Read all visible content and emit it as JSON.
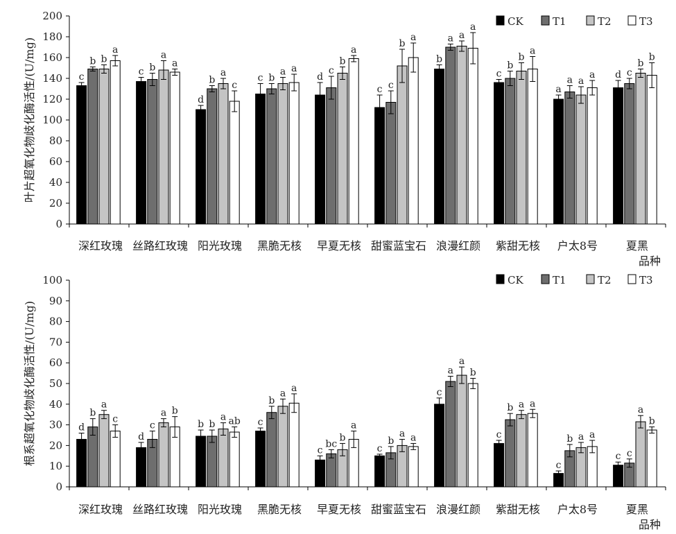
{
  "colors": {
    "CK": "#000000",
    "T1": "#6e6e6e",
    "T2": "#c4c4c4",
    "T3": "#ffffff",
    "edge": "#000000"
  },
  "chart_data": [
    {
      "type": "bar",
      "ylabel": "叶片超氧化物歧化酶活性/(U/mg)",
      "xlabel": "品种",
      "ylim": [
        0,
        200
      ],
      "yticks": [
        "0",
        "20",
        "40",
        "60",
        "80",
        "100",
        "120",
        "140",
        "160",
        "180",
        "200"
      ],
      "categories": [
        "深红玫瑰",
        "丝路红玫瑰",
        "阳光玫瑰",
        "黑脆无核",
        "早夏无核",
        "甜蜜蓝宝石",
        "浪漫红颜",
        "紫甜无核",
        "户太8号",
        "夏黑"
      ],
      "legend_position": "top-right",
      "series": [
        {
          "name": "CK",
          "values": [
            133,
            137,
            110,
            125,
            124,
            112,
            149,
            136,
            120,
            131
          ],
          "errors": [
            3,
            4,
            4,
            10,
            12,
            12,
            4,
            3,
            4,
            7
          ],
          "letters": [
            "c",
            "c",
            "d",
            "c",
            "d",
            "c",
            "b",
            "c",
            "a",
            "d"
          ]
        },
        {
          "name": "T1",
          "values": [
            149,
            139,
            130,
            130,
            131,
            117,
            170,
            140,
            127,
            135
          ],
          "errors": [
            2,
            6,
            3,
            5,
            11,
            11,
            3,
            7,
            6,
            5
          ],
          "letters": [
            "b",
            "b",
            "b",
            "b",
            "c",
            "c",
            "a",
            "b",
            "a",
            "c"
          ]
        },
        {
          "name": "T2",
          "values": [
            149,
            148,
            135,
            135,
            145,
            152,
            171,
            147,
            124,
            145
          ],
          "errors": [
            4,
            9,
            5,
            6,
            6,
            16,
            5,
            8,
            8,
            4
          ],
          "letters": [
            "b",
            "a",
            "a",
            "a",
            "b",
            "b",
            "a",
            "b",
            "a",
            "b"
          ]
        },
        {
          "name": "T3",
          "values": [
            157,
            146,
            118,
            136,
            159,
            160,
            169,
            149,
            131,
            143
          ],
          "errors": [
            5,
            3,
            10,
            8,
            3,
            14,
            15,
            12,
            7,
            12
          ],
          "letters": [
            "a",
            "a",
            "c",
            "a",
            "a",
            "a",
            "a",
            "a",
            "a",
            "b"
          ]
        }
      ]
    },
    {
      "type": "bar",
      "ylabel": "根系超氧化物歧化酶活性/(U/mg)",
      "xlabel": "品种",
      "ylim": [
        0,
        100
      ],
      "yticks": [
        "0",
        "10",
        "20",
        "30",
        "40",
        "50",
        "60",
        "70",
        "80",
        "90",
        "100"
      ],
      "categories": [
        "深红玫瑰",
        "丝路红玫瑰",
        "阳光玫瑰",
        "黑脆无核",
        "早夏无核",
        "甜蜜蓝宝石",
        "浪漫红颜",
        "紫甜无核",
        "户太8号",
        "夏黑"
      ],
      "legend_position": "top-right",
      "series": [
        {
          "name": "CK",
          "values": [
            23,
            19,
            24.5,
            27,
            13,
            15,
            40,
            21,
            6.5,
            10.5
          ],
          "errors": [
            3,
            2.5,
            3,
            1.5,
            2,
            0.8,
            3,
            1.5,
            1.2,
            1.5
          ],
          "letters": [
            "d",
            "d",
            "b",
            "c",
            "c",
            "c",
            "c",
            "c",
            "c",
            "c"
          ]
        },
        {
          "name": "T1",
          "values": [
            29,
            23,
            24.5,
            36,
            16,
            16.5,
            51,
            32.5,
            17.5,
            11.5
          ],
          "errors": [
            4,
            4,
            3,
            3,
            2,
            3,
            2.5,
            3,
            3,
            2
          ],
          "letters": [
            "b",
            "c",
            "b",
            "b",
            "bc",
            "b",
            "a",
            "b",
            "b",
            "c"
          ]
        },
        {
          "name": "T2",
          "values": [
            35,
            31,
            28,
            39,
            18,
            20,
            54,
            35,
            19,
            31.5
          ],
          "errors": [
            2,
            2,
            3,
            3.5,
            3,
            3,
            4,
            2,
            2.5,
            3
          ],
          "letters": [
            "a",
            "a",
            "a",
            "a",
            "b",
            "a",
            "a",
            "a",
            "a",
            "a"
          ]
        },
        {
          "name": "T3",
          "values": [
            27,
            29,
            26.5,
            40.5,
            23,
            19.5,
            50,
            35.5,
            19.5,
            27.5
          ],
          "errors": [
            3,
            5,
            2.5,
            4.5,
            4,
            1.5,
            2.5,
            2,
            3,
            1.5
          ],
          "letters": [
            "c",
            "b",
            "ab",
            "a",
            "a",
            "a",
            "b",
            "a",
            "a",
            "b"
          ]
        }
      ]
    }
  ]
}
